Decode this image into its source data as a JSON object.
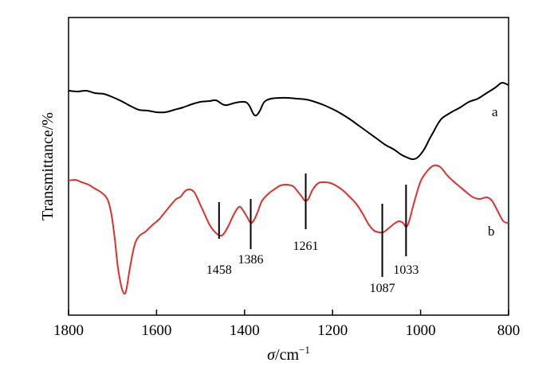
{
  "chart_data": {
    "type": "line",
    "title": "",
    "xlabel_symbol": "σ",
    "xlabel_unit": "/cm",
    "xlabel_exp": "−1",
    "ylabel": "Transmittance/%",
    "xlim": [
      1800,
      800
    ],
    "x_reversed": true,
    "grid": false,
    "yticks_shown": false,
    "xticks": [
      {
        "value": 1800,
        "label": "1800"
      },
      {
        "value": 1600,
        "label": "1600"
      },
      {
        "value": 1400,
        "label": "1400"
      },
      {
        "value": 1200,
        "label": "1200"
      },
      {
        "value": 1000,
        "label": "1000"
      },
      {
        "value": 800,
        "label": "800"
      }
    ],
    "series": [
      {
        "name": "a",
        "color": "#000000",
        "points": [
          [
            1800,
            114
          ],
          [
            1780,
            115
          ],
          [
            1760,
            114
          ],
          [
            1740,
            117
          ],
          [
            1720,
            118
          ],
          [
            1700,
            122
          ],
          [
            1680,
            127
          ],
          [
            1660,
            133
          ],
          [
            1640,
            138
          ],
          [
            1620,
            139
          ],
          [
            1600,
            141
          ],
          [
            1580,
            141
          ],
          [
            1560,
            138
          ],
          [
            1540,
            135
          ],
          [
            1520,
            131
          ],
          [
            1500,
            128
          ],
          [
            1480,
            127
          ],
          [
            1465,
            126
          ],
          [
            1450,
            131
          ],
          [
            1440,
            132
          ],
          [
            1420,
            129
          ],
          [
            1400,
            128
          ],
          [
            1390,
            132
          ],
          [
            1380,
            143
          ],
          [
            1373,
            145
          ],
          [
            1365,
            139
          ],
          [
            1355,
            128
          ],
          [
            1340,
            124
          ],
          [
            1320,
            123
          ],
          [
            1300,
            123
          ],
          [
            1280,
            124
          ],
          [
            1260,
            125
          ],
          [
            1240,
            128
          ],
          [
            1220,
            132
          ],
          [
            1200,
            137
          ],
          [
            1180,
            143
          ],
          [
            1160,
            150
          ],
          [
            1140,
            158
          ],
          [
            1120,
            166
          ],
          [
            1100,
            174
          ],
          [
            1080,
            182
          ],
          [
            1060,
            188
          ],
          [
            1045,
            194
          ],
          [
            1030,
            198
          ],
          [
            1020,
            200
          ],
          [
            1010,
            199
          ],
          [
            1000,
            194
          ],
          [
            990,
            186
          ],
          [
            980,
            175
          ],
          [
            970,
            165
          ],
          [
            960,
            155
          ],
          [
            950,
            148
          ],
          [
            930,
            141
          ],
          [
            910,
            135
          ],
          [
            890,
            128
          ],
          [
            870,
            124
          ],
          [
            850,
            117
          ],
          [
            830,
            110
          ],
          [
            815,
            104
          ],
          [
            800,
            107
          ]
        ]
      },
      {
        "name": "b",
        "color": "#e0302a",
        "points": [
          [
            1800,
            227
          ],
          [
            1785,
            226
          ],
          [
            1770,
            229
          ],
          [
            1755,
            232
          ],
          [
            1740,
            237
          ],
          [
            1725,
            242
          ],
          [
            1712,
            250
          ],
          [
            1703,
            268
          ],
          [
            1695,
            300
          ],
          [
            1688,
            335
          ],
          [
            1680,
            360
          ],
          [
            1673,
            369
          ],
          [
            1668,
            362
          ],
          [
            1660,
            335
          ],
          [
            1650,
            308
          ],
          [
            1640,
            297
          ],
          [
            1625,
            291
          ],
          [
            1610,
            283
          ],
          [
            1595,
            276
          ],
          [
            1580,
            266
          ],
          [
            1565,
            256
          ],
          [
            1555,
            250
          ],
          [
            1545,
            247
          ],
          [
            1535,
            240
          ],
          [
            1525,
            238
          ],
          [
            1515,
            241
          ],
          [
            1508,
            248
          ],
          [
            1500,
            258
          ],
          [
            1490,
            270
          ],
          [
            1480,
            282
          ],
          [
            1470,
            290
          ],
          [
            1460,
            295
          ],
          [
            1452,
            296
          ],
          [
            1445,
            292
          ],
          [
            1435,
            282
          ],
          [
            1425,
            270
          ],
          [
            1413,
            260
          ],
          [
            1405,
            263
          ],
          [
            1395,
            272
          ],
          [
            1386,
            280
          ],
          [
            1378,
            276
          ],
          [
            1370,
            266
          ],
          [
            1360,
            252
          ],
          [
            1345,
            243
          ],
          [
            1330,
            237
          ],
          [
            1318,
            233
          ],
          [
            1305,
            232
          ],
          [
            1290,
            234
          ],
          [
            1280,
            240
          ],
          [
            1270,
            247
          ],
          [
            1263,
            252
          ],
          [
            1255,
            250
          ],
          [
            1245,
            238
          ],
          [
            1232,
            230
          ],
          [
            1220,
            229
          ],
          [
            1205,
            230
          ],
          [
            1190,
            234
          ],
          [
            1175,
            240
          ],
          [
            1160,
            248
          ],
          [
            1145,
            257
          ],
          [
            1130,
            270
          ],
          [
            1118,
            282
          ],
          [
            1105,
            290
          ],
          [
            1092,
            292
          ],
          [
            1085,
            292
          ],
          [
            1075,
            288
          ],
          [
            1062,
            282
          ],
          [
            1050,
            278
          ],
          [
            1040,
            280
          ],
          [
            1033,
            285
          ],
          [
            1026,
            278
          ],
          [
            1015,
            255
          ],
          [
            1000,
            228
          ],
          [
            985,
            215
          ],
          [
            970,
            208
          ],
          [
            955,
            210
          ],
          [
            940,
            220
          ],
          [
            925,
            228
          ],
          [
            910,
            235
          ],
          [
            895,
            242
          ],
          [
            880,
            248
          ],
          [
            865,
            250
          ],
          [
            850,
            248
          ],
          [
            838,
            252
          ],
          [
            825,
            265
          ],
          [
            812,
            278
          ],
          [
            800,
            280
          ]
        ]
      }
    ],
    "annotations": [
      {
        "x": 1458,
        "label": "1458"
      },
      {
        "x": 1386,
        "label": "1386"
      },
      {
        "x": 1261,
        "label": "1261"
      },
      {
        "x": 1087,
        "label": "1087"
      },
      {
        "x": 1033,
        "label": "1033"
      }
    ]
  }
}
